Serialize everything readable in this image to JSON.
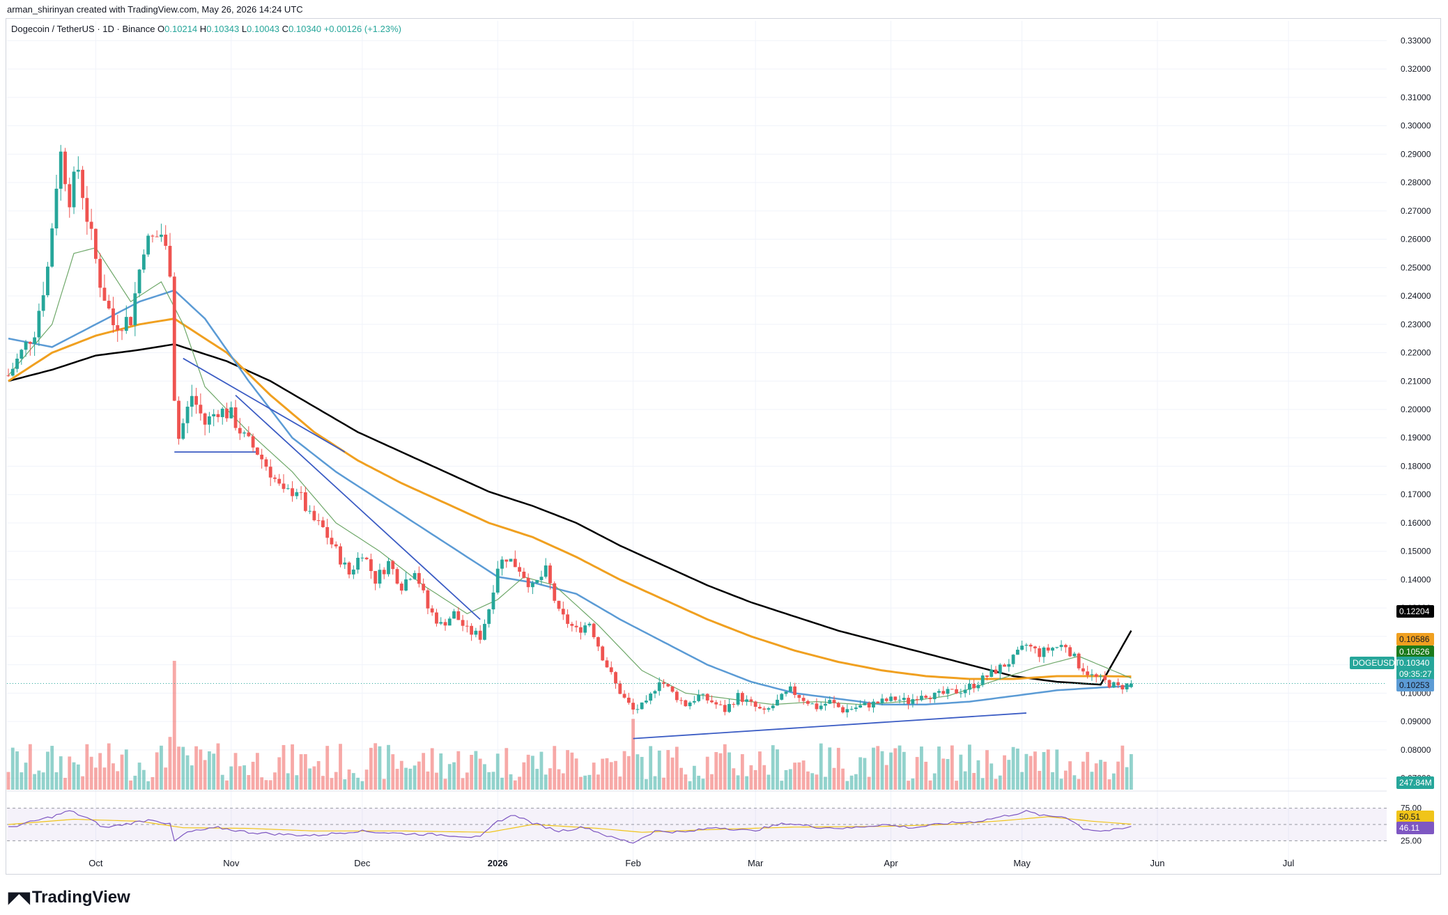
{
  "header": {
    "attribution": "arman_shirinyan created with TradingView.com, May 26, 2026 14:24 UTC"
  },
  "legend": {
    "symbol": "Dogecoin / TetherUS · 1D · Binance",
    "o_label": "O",
    "o": "0.10214",
    "h_label": "H",
    "h": "0.10343",
    "l_label": "L",
    "l": "0.10043",
    "c_label": "C",
    "c": "0.10340",
    "change": "+0.00126 (+1.23%)"
  },
  "brand": {
    "logo_text": "TradingView"
  },
  "colors": {
    "up": "#26a69a",
    "down": "#ef5350",
    "ma_fast": "#6fa86a",
    "ma_mid": "#5b9bd5",
    "ma_slow": "#f0a020",
    "ma_long": "#000000",
    "rsi": "#7e57c2",
    "rsi_ma": "#f0c419",
    "trendline": "#3b5cc4"
  },
  "chart_data": {
    "type": "candlestick",
    "symbol": "DOGEUSDT",
    "ylim": [
      0.065,
      0.335
    ],
    "price_ticks": [
      "0.33000",
      "0.32000",
      "0.31000",
      "0.30000",
      "0.29000",
      "0.28000",
      "0.27000",
      "0.26000",
      "0.25000",
      "0.24000",
      "0.23000",
      "0.22000",
      "0.21000",
      "0.20000",
      "0.19000",
      "0.18000",
      "0.17000",
      "0.16000",
      "0.15000",
      "0.14000",
      "0.13000",
      "0.12000",
      "0.11000",
      "0.10000",
      "0.09000",
      "0.08000",
      "0.07000"
    ],
    "x_ticks": [
      "Oct",
      "Nov",
      "Dec",
      "2026",
      "Feb",
      "Mar",
      "Apr",
      "May",
      "Jun",
      "Jul"
    ],
    "x_tick_days": [
      20,
      51,
      81,
      112,
      143,
      171,
      202,
      232,
      263,
      293
    ],
    "last_day": 257,
    "close_anchors": [
      [
        0,
        0.212
      ],
      [
        3,
        0.22
      ],
      [
        6,
        0.228
      ],
      [
        9,
        0.25
      ],
      [
        11,
        0.28
      ],
      [
        12,
        0.29
      ],
      [
        14,
        0.275
      ],
      [
        16,
        0.285
      ],
      [
        18,
        0.268
      ],
      [
        21,
        0.245
      ],
      [
        24,
        0.23
      ],
      [
        28,
        0.232
      ],
      [
        31,
        0.258
      ],
      [
        35,
        0.262
      ],
      [
        37,
        0.25
      ],
      [
        38,
        0.205
      ],
      [
        39,
        0.19
      ],
      [
        42,
        0.205
      ],
      [
        45,
        0.195
      ],
      [
        48,
        0.2
      ],
      [
        51,
        0.198
      ],
      [
        54,
        0.19
      ],
      [
        57,
        0.185
      ],
      [
        60,
        0.178
      ],
      [
        63,
        0.17
      ],
      [
        66,
        0.172
      ],
      [
        69,
        0.162
      ],
      [
        72,
        0.158
      ],
      [
        75,
        0.15
      ],
      [
        78,
        0.142
      ],
      [
        81,
        0.15
      ],
      [
        84,
        0.14
      ],
      [
        87,
        0.146
      ],
      [
        90,
        0.138
      ],
      [
        93,
        0.144
      ],
      [
        96,
        0.13
      ],
      [
        99,
        0.124
      ],
      [
        102,
        0.128
      ],
      [
        105,
        0.122
      ],
      [
        108,
        0.12
      ],
      [
        110,
        0.13
      ],
      [
        112,
        0.145
      ],
      [
        114,
        0.148
      ],
      [
        117,
        0.144
      ],
      [
        120,
        0.137
      ],
      [
        123,
        0.143
      ],
      [
        126,
        0.128
      ],
      [
        130,
        0.122
      ],
      [
        133,
        0.125
      ],
      [
        136,
        0.113
      ],
      [
        139,
        0.103
      ],
      [
        141,
        0.098
      ],
      [
        143,
        0.094
      ],
      [
        146,
        0.096
      ],
      [
        149,
        0.105
      ],
      [
        152,
        0.1
      ],
      [
        155,
        0.096
      ],
      [
        158,
        0.099
      ],
      [
        161,
        0.097
      ],
      [
        164,
        0.094
      ],
      [
        167,
        0.099
      ],
      [
        170,
        0.096
      ],
      [
        173,
        0.093
      ],
      [
        176,
        0.097
      ],
      [
        179,
        0.101
      ],
      [
        182,
        0.098
      ],
      [
        185,
        0.095
      ],
      [
        188,
        0.097
      ],
      [
        191,
        0.094
      ],
      [
        194,
        0.095
      ],
      [
        197,
        0.096
      ],
      [
        200,
        0.097
      ],
      [
        203,
        0.098
      ],
      [
        206,
        0.097
      ],
      [
        209,
        0.1
      ],
      [
        212,
        0.099
      ],
      [
        215,
        0.1
      ],
      [
        218,
        0.101
      ],
      [
        221,
        0.103
      ],
      [
        224,
        0.106
      ],
      [
        227,
        0.109
      ],
      [
        230,
        0.112
      ],
      [
        233,
        0.117
      ],
      [
        236,
        0.114
      ],
      [
        239,
        0.116
      ],
      [
        242,
        0.117
      ],
      [
        245,
        0.11
      ],
      [
        248,
        0.106
      ],
      [
        251,
        0.104
      ],
      [
        254,
        0.102
      ],
      [
        257,
        0.1034
      ]
    ],
    "moving_averages": [
      {
        "label": "long",
        "value_label": "0.12204",
        "anchors": [
          [
            0,
            0.21
          ],
          [
            10,
            0.214
          ],
          [
            20,
            0.219
          ],
          [
            30,
            0.221
          ],
          [
            38,
            0.223
          ],
          [
            50,
            0.217
          ],
          [
            60,
            0.21
          ],
          [
            70,
            0.201
          ],
          [
            80,
            0.192
          ],
          [
            90,
            0.185
          ],
          [
            100,
            0.178
          ],
          [
            110,
            0.171
          ],
          [
            120,
            0.166
          ],
          [
            130,
            0.16
          ],
          [
            140,
            0.152
          ],
          [
            150,
            0.145
          ],
          [
            160,
            0.138
          ],
          [
            170,
            0.132
          ],
          [
            180,
            0.127
          ],
          [
            190,
            0.122
          ],
          [
            200,
            0.118
          ],
          [
            210,
            0.114
          ],
          [
            220,
            0.11
          ],
          [
            230,
            0.106
          ],
          [
            240,
            0.104
          ],
          [
            250,
            0.103
          ],
          [
            257,
            0.12204
          ]
        ]
      },
      {
        "label": "slow",
        "value_label": "0.10586",
        "anchors": [
          [
            0,
            0.21
          ],
          [
            10,
            0.22
          ],
          [
            20,
            0.226
          ],
          [
            30,
            0.23
          ],
          [
            38,
            0.232
          ],
          [
            50,
            0.22
          ],
          [
            60,
            0.205
          ],
          [
            70,
            0.192
          ],
          [
            80,
            0.182
          ],
          [
            90,
            0.174
          ],
          [
            100,
            0.167
          ],
          [
            110,
            0.16
          ],
          [
            120,
            0.155
          ],
          [
            130,
            0.148
          ],
          [
            140,
            0.14
          ],
          [
            150,
            0.133
          ],
          [
            160,
            0.126
          ],
          [
            170,
            0.12
          ],
          [
            180,
            0.115
          ],
          [
            190,
            0.111
          ],
          [
            200,
            0.108
          ],
          [
            210,
            0.106
          ],
          [
            220,
            0.105
          ],
          [
            230,
            0.105
          ],
          [
            240,
            0.106
          ],
          [
            250,
            0.106
          ],
          [
            257,
            0.10586
          ]
        ]
      },
      {
        "label": "mid",
        "value_label": "0.10253",
        "anchors": [
          [
            0,
            0.225
          ],
          [
            10,
            0.222
          ],
          [
            20,
            0.23
          ],
          [
            30,
            0.238
          ],
          [
            38,
            0.242
          ],
          [
            45,
            0.232
          ],
          [
            55,
            0.21
          ],
          [
            65,
            0.19
          ],
          [
            75,
            0.178
          ],
          [
            85,
            0.168
          ],
          [
            95,
            0.158
          ],
          [
            105,
            0.148
          ],
          [
            112,
            0.141
          ],
          [
            120,
            0.139
          ],
          [
            130,
            0.135
          ],
          [
            140,
            0.126
          ],
          [
            150,
            0.118
          ],
          [
            160,
            0.11
          ],
          [
            170,
            0.104
          ],
          [
            180,
            0.1
          ],
          [
            190,
            0.098
          ],
          [
            200,
            0.096
          ],
          [
            210,
            0.096
          ],
          [
            220,
            0.097
          ],
          [
            230,
            0.099
          ],
          [
            240,
            0.101
          ],
          [
            250,
            0.102
          ],
          [
            257,
            0.10253
          ]
        ]
      },
      {
        "label": "fast",
        "value_label": "0.10526",
        "anchors": [
          [
            0,
            0.212
          ],
          [
            10,
            0.23
          ],
          [
            15,
            0.255
          ],
          [
            20,
            0.257
          ],
          [
            28,
            0.238
          ],
          [
            35,
            0.245
          ],
          [
            40,
            0.23
          ],
          [
            45,
            0.208
          ],
          [
            55,
            0.192
          ],
          [
            65,
            0.178
          ],
          [
            75,
            0.16
          ],
          [
            85,
            0.15
          ],
          [
            95,
            0.138
          ],
          [
            105,
            0.128
          ],
          [
            112,
            0.133
          ],
          [
            118,
            0.141
          ],
          [
            125,
            0.138
          ],
          [
            135,
            0.124
          ],
          [
            145,
            0.108
          ],
          [
            155,
            0.1
          ],
          [
            165,
            0.098
          ],
          [
            175,
            0.096
          ],
          [
            185,
            0.097
          ],
          [
            195,
            0.096
          ],
          [
            205,
            0.097
          ],
          [
            215,
            0.099
          ],
          [
            225,
            0.104
          ],
          [
            235,
            0.109
          ],
          [
            245,
            0.113
          ],
          [
            257,
            0.10526
          ]
        ]
      }
    ],
    "price_tags": {
      "symbol": "DOGEUSDT",
      "last": "0.10340",
      "countdown": "09:35:27",
      "volume": "247.84M"
    },
    "rsi": {
      "levels": [
        "75.00",
        "25.00"
      ],
      "value": "46.11",
      "ma_value": "50.51",
      "anchors": [
        [
          0,
          45
        ],
        [
          10,
          62
        ],
        [
          14,
          71
        ],
        [
          18,
          60
        ],
        [
          22,
          45
        ],
        [
          28,
          52
        ],
        [
          33,
          58
        ],
        [
          37,
          50
        ],
        [
          38,
          24
        ],
        [
          41,
          38
        ],
        [
          48,
          45
        ],
        [
          55,
          38
        ],
        [
          62,
          35
        ],
        [
          70,
          33
        ],
        [
          80,
          40
        ],
        [
          90,
          36
        ],
        [
          100,
          34
        ],
        [
          108,
          30
        ],
        [
          112,
          55
        ],
        [
          116,
          65
        ],
        [
          120,
          52
        ],
        [
          126,
          40
        ],
        [
          132,
          46
        ],
        [
          138,
          30
        ],
        [
          143,
          22
        ],
        [
          148,
          40
        ],
        [
          155,
          38
        ],
        [
          162,
          46
        ],
        [
          170,
          40
        ],
        [
          178,
          52
        ],
        [
          185,
          46
        ],
        [
          192,
          44
        ],
        [
          200,
          50
        ],
        [
          207,
          45
        ],
        [
          215,
          52
        ],
        [
          222,
          55
        ],
        [
          228,
          63
        ],
        [
          233,
          70
        ],
        [
          237,
          63
        ],
        [
          242,
          62
        ],
        [
          246,
          44
        ],
        [
          250,
          40
        ],
        [
          254,
          42
        ],
        [
          257,
          46
        ]
      ],
      "ma_anchors": [
        [
          0,
          50
        ],
        [
          15,
          58
        ],
        [
          30,
          55
        ],
        [
          40,
          45
        ],
        [
          55,
          44
        ],
        [
          70,
          40
        ],
        [
          90,
          40
        ],
        [
          110,
          38
        ],
        [
          120,
          50
        ],
        [
          135,
          44
        ],
        [
          145,
          38
        ],
        [
          160,
          42
        ],
        [
          180,
          46
        ],
        [
          200,
          47
        ],
        [
          215,
          50
        ],
        [
          228,
          56
        ],
        [
          238,
          62
        ],
        [
          248,
          55
        ],
        [
          257,
          50.51
        ]
      ]
    },
    "trendlines": [
      {
        "from": [
          40,
          0.218
        ],
        "to": [
          77,
          0.185
        ]
      },
      {
        "from": [
          38,
          0.185
        ],
        "to": [
          57,
          0.185
        ]
      },
      {
        "from": [
          52,
          0.205
        ],
        "to": [
          108,
          0.126
        ]
      },
      {
        "from": [
          143,
          0.084
        ],
        "to": [
          233,
          0.093
        ]
      }
    ]
  }
}
